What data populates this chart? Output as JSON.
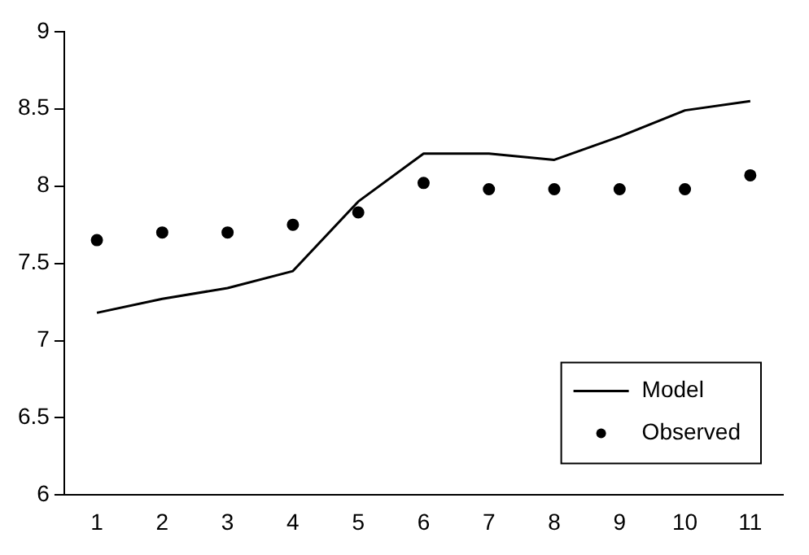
{
  "chart_data": {
    "type": "line",
    "categories": [
      "1",
      "2",
      "3",
      "4",
      "5",
      "6",
      "7",
      "8",
      "9",
      "10",
      "11"
    ],
    "series": [
      {
        "name": "Model",
        "color": "#000000",
        "marker": "none",
        "values": [
          7.18,
          7.27,
          7.34,
          7.45,
          7.9,
          8.21,
          8.21,
          8.17,
          8.32,
          8.49,
          8.55
        ]
      },
      {
        "name": "Observed",
        "type": "scatter",
        "color": "#000000",
        "marker": "circle",
        "values": [
          7.65,
          7.7,
          7.7,
          7.75,
          7.83,
          8.02,
          7.98,
          7.98,
          7.98,
          7.98,
          8.07
        ]
      }
    ],
    "ylim": [
      6,
      9
    ],
    "yticks": [
      6,
      6.5,
      7,
      7.5,
      8,
      8.5,
      9
    ],
    "grid": false,
    "legend": "bottom right"
  }
}
